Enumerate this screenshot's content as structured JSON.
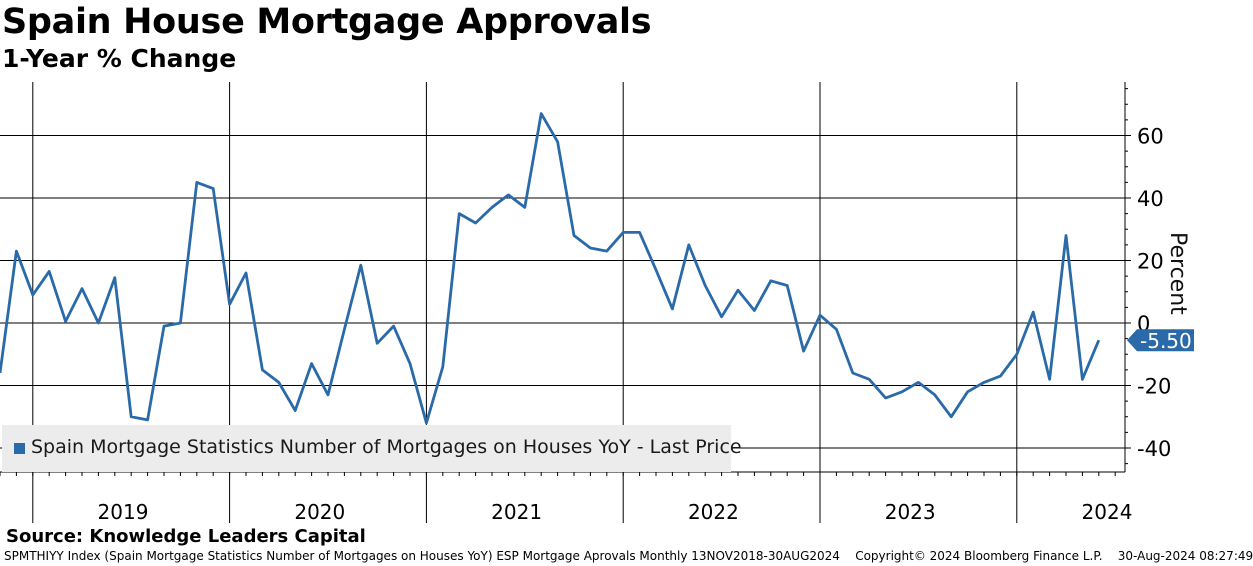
{
  "title": "Spain House Mortgage Approvals",
  "subtitle": "1-Year % Change",
  "source": "Source: Knowledge Leaders Capital",
  "footer": {
    "left": "SPMTHIYY Index (Spain Mortgage Statistics Number of Mortgages on Houses YoY) ESP Mortgage Aprovals  Monthly 13NOV2018-30AUG2024",
    "copyright": "Copyright© 2024 Bloomberg Finance L.P.",
    "timestamp": "30-Aug-2024 08:27:49"
  },
  "colors": {
    "line": "#2b6aa8",
    "grid": "#000000",
    "last_price_bg": "#2b6aa8"
  },
  "chart_data": {
    "type": "line",
    "title": "Spain House Mortgage Approvals",
    "subtitle": "1-Year % Change",
    "ylabel": "Percent",
    "ylim": [
      -48,
      77
    ],
    "yticks": [
      60,
      40,
      20,
      0,
      -20,
      -40
    ],
    "ytick_labels": [
      "60",
      "40",
      "20",
      "0",
      "-20",
      "-40"
    ],
    "x_start_month": 11,
    "x_start_year": 2018,
    "year_labels": [
      "2019",
      "2020",
      "2021",
      "2022",
      "2023",
      "2024"
    ],
    "series": [
      {
        "name": "Spain Mortgage Statistics Number of Mortgages on Houses YoY - Last Price",
        "legend_label": "Spain Mortgage Statistics Number of Mortgages on Houses YoY - Last Price",
        "values": [
          -16,
          23,
          9,
          16.5,
          0.5,
          11,
          0,
          14.5,
          -30,
          -31,
          -1,
          0,
          45,
          43,
          6,
          16,
          -15,
          -19,
          -28,
          -13,
          -23,
          -2,
          18.5,
          -6.5,
          -1,
          -13,
          -32,
          -14,
          35,
          32,
          37,
          41,
          37,
          67,
          58,
          28,
          24,
          23,
          29,
          29,
          17,
          4.5,
          25,
          12,
          2,
          10.5,
          4,
          13.5,
          12,
          -9,
          2.5,
          -2,
          -16,
          -18,
          -24,
          -22,
          -19,
          -23,
          -30,
          -22,
          -19,
          -17,
          -10,
          3.5,
          -18,
          28,
          -18,
          -5.5
        ],
        "last_value_label": "-5.50"
      }
    ]
  }
}
